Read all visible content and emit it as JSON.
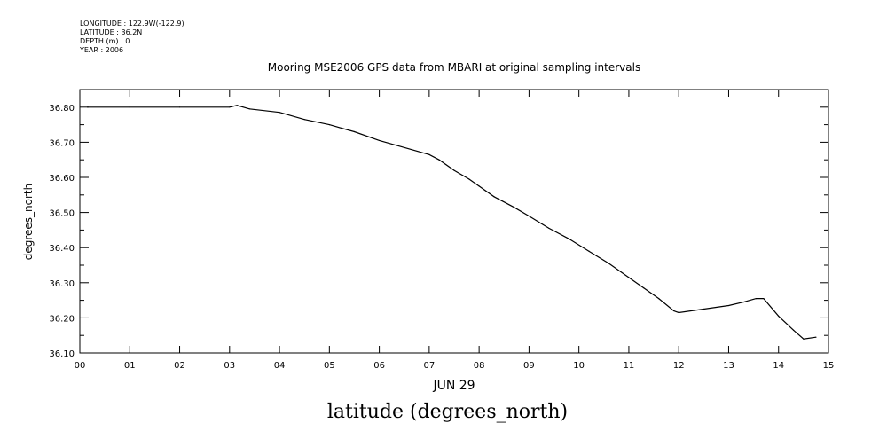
{
  "metadata": {
    "longitude": "LONGITUDE : 122.9W(-122.9)",
    "latitude": "LATITUDE : 36.2N",
    "depth": "DEPTH (m) : 0",
    "year": "YEAR : 2006"
  },
  "caption": "latitude (degrees_north)",
  "chart_data": {
    "type": "line",
    "title": "Mooring MSE2006 GPS data from MBARI at original sampling intervals",
    "xlabel": "JUN 29",
    "ylabel": "degrees_north",
    "xlim": [
      0,
      15
    ],
    "ylim": [
      36.1,
      36.85
    ],
    "x_ticks": [
      "00",
      "01",
      "02",
      "03",
      "04",
      "05",
      "06",
      "07",
      "08",
      "09",
      "10",
      "11",
      "12",
      "13",
      "14",
      "15"
    ],
    "y_ticks": [
      "36.10",
      "36.20",
      "36.30",
      "36.40",
      "36.50",
      "36.60",
      "36.70",
      "36.80"
    ],
    "grid": false,
    "series": [
      {
        "x": [
          0.15,
          1.0,
          2.0,
          3.0,
          3.15,
          3.4,
          4.0,
          4.5,
          5.0,
          5.5,
          6.0,
          6.5,
          7.0,
          7.2,
          7.5,
          7.8,
          8.0,
          8.3,
          8.7,
          9.0,
          9.4,
          9.8,
          10.2,
          10.6,
          11.0,
          11.3,
          11.6,
          11.9,
          12.0,
          12.5,
          13.0,
          13.3,
          13.55,
          13.7,
          14.0,
          14.3,
          14.5,
          14.75
        ],
        "y": [
          36.8,
          36.8,
          36.8,
          36.8,
          36.805,
          36.795,
          36.785,
          36.765,
          36.75,
          36.73,
          36.705,
          36.685,
          36.665,
          36.65,
          36.62,
          36.595,
          36.575,
          36.545,
          36.515,
          36.49,
          36.455,
          36.425,
          36.39,
          36.355,
          36.315,
          36.285,
          36.255,
          36.22,
          36.215,
          36.225,
          36.235,
          36.245,
          36.255,
          36.255,
          36.205,
          36.165,
          36.14,
          36.145
        ]
      }
    ]
  }
}
